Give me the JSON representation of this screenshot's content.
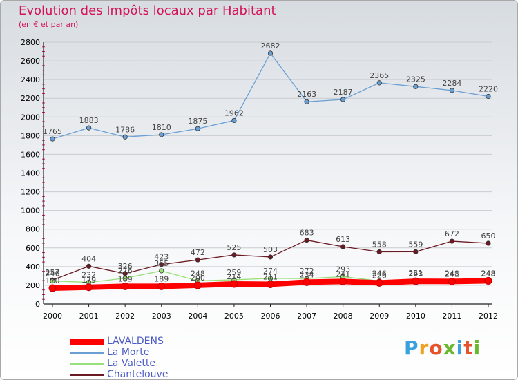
{
  "title": "Evolution des Impôts locaux par Habitant",
  "subtitle": "(en € et par an)",
  "logo_text": "Proxiti",
  "chart_data": {
    "type": "line",
    "title": "Evolution des Impôts locaux par Habitant",
    "ylabel": "(en € et par an)",
    "xlabel": "",
    "ylim": [
      0,
      2800
    ],
    "yticks": [
      0,
      200,
      400,
      600,
      800,
      1000,
      1200,
      1400,
      1600,
      1800,
      2000,
      2200,
      2400,
      2600,
      2800
    ],
    "categories": [
      "2000",
      "2001",
      "2002",
      "2003",
      "2004",
      "2005",
      "2006",
      "2007",
      "2008",
      "2009",
      "2010",
      "2011",
      "2012"
    ],
    "legend_position": "bottom-left",
    "series": [
      {
        "name": "LAVALDENS",
        "color": "#ff0000",
        "values": [
          170,
          179,
          189,
          189,
          200,
          214,
          211,
          234,
          241,
          226,
          243,
          241,
          248
        ]
      },
      {
        "name": "La Morte",
        "color": "#6a9fd4",
        "values": [
          1765,
          1883,
          1786,
          1810,
          1875,
          1962,
          2682,
          2163,
          2187,
          2365,
          2325,
          2284,
          2220
        ]
      },
      {
        "name": "La Valette",
        "color": "#99e07a",
        "values": [
          246,
          232,
          276,
          355,
          248,
          259,
          274,
          272,
          293,
          246,
          251,
          248,
          248
        ]
      },
      {
        "name": "Chantelouve",
        "color": "#6b1a24",
        "values": [
          257,
          404,
          326,
          423,
          472,
          525,
          503,
          683,
          613,
          558,
          559,
          672,
          650
        ]
      }
    ]
  }
}
